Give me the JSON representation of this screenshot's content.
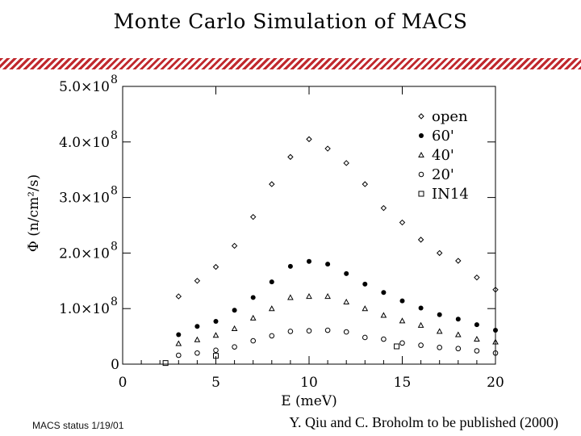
{
  "slide": {
    "title": "Monte Carlo Simulation of MACS",
    "footer_left": "MACS status   1/19/01",
    "footer_right": "Y. Qiu and C. Broholm to be published (2000)",
    "accent_color": "#c0282d"
  },
  "chart_data": {
    "type": "scatter",
    "title": "",
    "xlabel": "E (meV)",
    "ylabel": "Φ (n/cm²/s)",
    "xlim": [
      0,
      20
    ],
    "ylim": [
      0,
      500000000
    ],
    "x_ticks": [
      0,
      5,
      10,
      15,
      20
    ],
    "x_tick_labels": [
      "0",
      "5",
      "10",
      "15",
      "20"
    ],
    "y_ticks": [
      0,
      100000000,
      200000000,
      300000000,
      400000000,
      500000000
    ],
    "y_tick_labels": [
      "0",
      "1.0×10",
      "2.0×10",
      "3.0×10",
      "4.0×10",
      "5.0×10"
    ],
    "y_tick_exponent": "8",
    "legend_position": "top-right",
    "series": [
      {
        "name": "open",
        "marker": "diamond",
        "x": [
          3,
          4,
          5,
          6,
          7,
          8,
          9,
          10,
          11,
          12,
          13,
          14,
          15,
          16,
          17,
          18,
          19,
          20
        ],
        "y": [
          122000000,
          150000000,
          175000000,
          213000000,
          265000000,
          324000000,
          373000000,
          405000000,
          388000000,
          362000000,
          324000000,
          281000000,
          255000000,
          224000000,
          200000000,
          186000000,
          156000000,
          134000000
        ]
      },
      {
        "name": "60'",
        "marker": "filled-circle",
        "x": [
          3,
          4,
          5,
          6,
          7,
          8,
          9,
          10,
          11,
          12,
          13,
          14,
          15,
          16,
          17,
          18,
          19,
          20
        ],
        "y": [
          53000000,
          68000000,
          77000000,
          97000000,
          120000000,
          148000000,
          176000000,
          185000000,
          180000000,
          163000000,
          144000000,
          129000000,
          114000000,
          101000000,
          89000000,
          81000000,
          71000000,
          61000000
        ]
      },
      {
        "name": "40'",
        "marker": "triangle",
        "x": [
          3,
          4,
          5,
          6,
          7,
          8,
          9,
          10,
          11,
          12,
          13,
          14,
          15,
          16,
          17,
          18,
          19,
          20
        ],
        "y": [
          37000000,
          44000000,
          52000000,
          64000000,
          83000000,
          100000000,
          120000000,
          122000000,
          122000000,
          112000000,
          100000000,
          88000000,
          78000000,
          70000000,
          59000000,
          53000000,
          45000000,
          40000000
        ]
      },
      {
        "name": "20'",
        "marker": "open-circle",
        "x": [
          3,
          4,
          5,
          6,
          7,
          8,
          9,
          10,
          11,
          12,
          13,
          14,
          15,
          16,
          17,
          18,
          19,
          20
        ],
        "y": [
          16000000,
          20000000,
          25000000,
          31000000,
          42000000,
          51000000,
          59000000,
          60000000,
          61000000,
          58000000,
          48000000,
          45000000,
          38000000,
          34000000,
          30000000,
          28000000,
          24000000,
          20000000
        ]
      },
      {
        "name": "IN14",
        "marker": "open-square",
        "x": [
          2.3,
          5,
          14.7
        ],
        "y": [
          2000000,
          15000000,
          32000000
        ]
      }
    ]
  }
}
